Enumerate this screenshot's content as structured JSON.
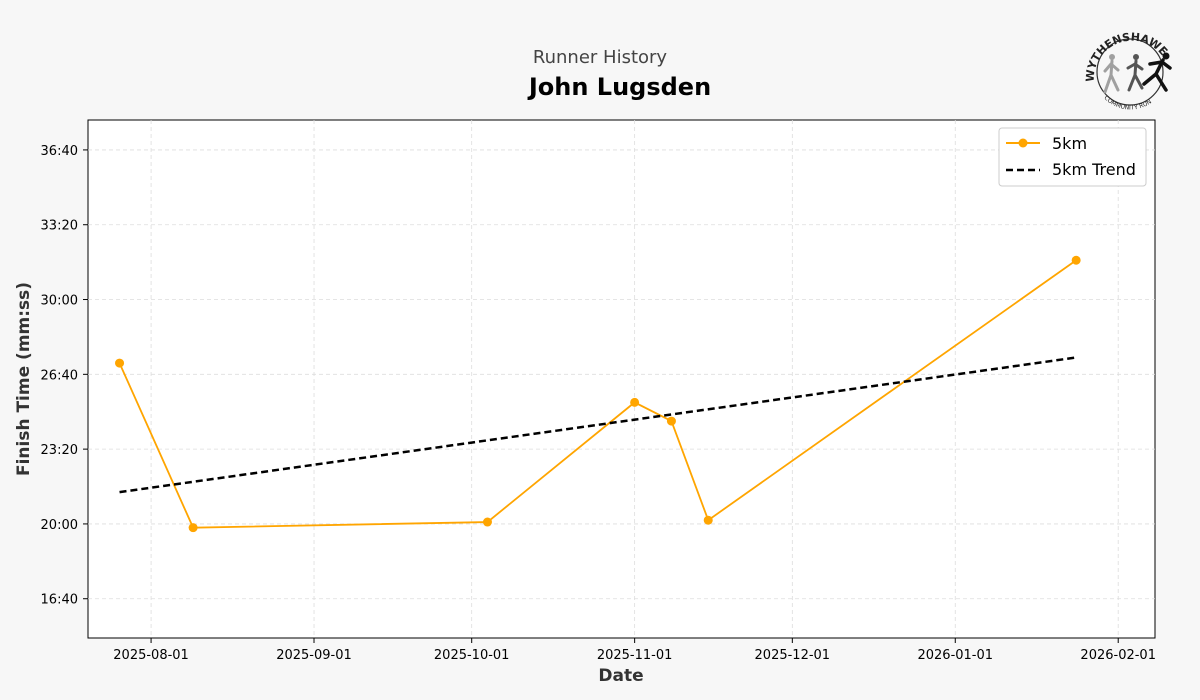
{
  "header": {
    "subtitle": "Runner History",
    "title": "John Lugsden"
  },
  "logo": {
    "top_text": "WYTHENSHAWE",
    "bottom_text": "COMMUNITY RUN"
  },
  "chart_data": {
    "type": "line",
    "xlabel": "Date",
    "ylabel": "Finish Time (mm:ss)",
    "x_ticks": [
      "2025-08-01",
      "2025-09-01",
      "2025-10-01",
      "2025-11-01",
      "2025-12-01",
      "2026-01-01",
      "2026-02-01"
    ],
    "y_ticks": [
      "16:40",
      "20:00",
      "23:20",
      "26:40",
      "30:00",
      "33:20",
      "36:40"
    ],
    "xlim": [
      "2025-07-20",
      "2026-02-08"
    ],
    "ylim": [
      "14:55",
      "38:00"
    ],
    "grid": true,
    "legend_position": "top-right",
    "series": [
      {
        "name": "5km",
        "style": "solid-markers",
        "color": "#FFA500",
        "points": [
          {
            "date": "2025-07-26",
            "time": "27:10"
          },
          {
            "date": "2025-08-09",
            "time": "19:50"
          },
          {
            "date": "2025-10-04",
            "time": "20:05"
          },
          {
            "date": "2025-11-01",
            "time": "25:25"
          },
          {
            "date": "2025-11-08",
            "time": "24:35"
          },
          {
            "date": "2025-11-15",
            "time": "20:10"
          },
          {
            "date": "2026-01-24",
            "time": "31:45"
          }
        ]
      },
      {
        "name": "5km Trend",
        "style": "dashed",
        "color": "#000000",
        "points": [
          {
            "date": "2025-07-26",
            "time": "21:25"
          },
          {
            "date": "2026-01-24",
            "time": "27:25"
          }
        ]
      }
    ]
  }
}
